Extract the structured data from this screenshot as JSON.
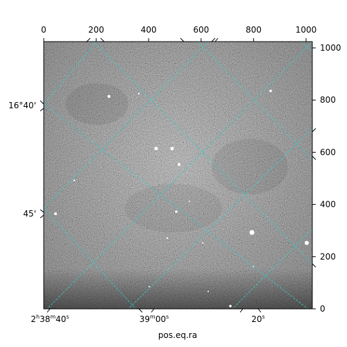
{
  "figure": {
    "xlabel": "pos.eq.ra",
    "pixel_axes": {
      "x_range": [
        0,
        1024
      ],
      "y_range": [
        0,
        1024
      ],
      "top_ticks": [
        "0",
        "200",
        "400",
        "600",
        "800",
        "1000"
      ],
      "right_ticks": [
        "0",
        "200",
        "400",
        "600",
        "800",
        "1000"
      ]
    },
    "world_axes": {
      "ra_ticks": [
        {
          "h": "2",
          "m": "38",
          "s": "40",
          "text": "2h38m40s"
        },
        {
          "m": "39",
          "s": "00",
          "text": "39m00s"
        },
        {
          "s": "20",
          "text": "20s"
        }
      ],
      "dec_ticks": [
        "16°40'",
        "45'"
      ]
    },
    "grid_color": "#3cc8c8",
    "frame_color": "#000000"
  }
}
